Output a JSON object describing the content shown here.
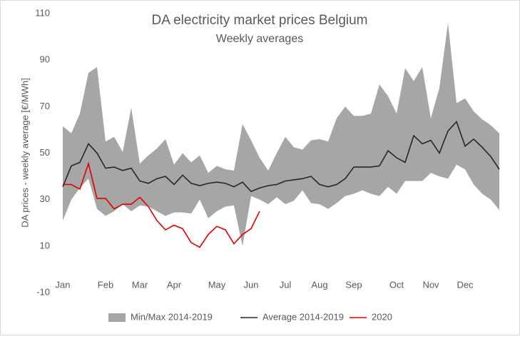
{
  "chart_data": {
    "type": "line",
    "title": "DA electricity market prices Belgium",
    "subtitle": "Weekly averages",
    "y_label": "DA prices - weekly average [€/MWh]",
    "categories": [
      "Jan",
      null,
      null,
      null,
      null,
      "Feb",
      null,
      null,
      null,
      "Mar",
      null,
      null,
      null,
      "Apr",
      null,
      null,
      null,
      null,
      "May",
      null,
      null,
      null,
      "Jun",
      null,
      null,
      null,
      "Jul",
      null,
      null,
      null,
      "Aug",
      null,
      null,
      null,
      "Sep",
      null,
      null,
      null,
      null,
      "Oct",
      null,
      null,
      null,
      "Nov",
      null,
      null,
      null,
      "Dec",
      null,
      null,
      null,
      null
    ],
    "ylim": [
      -10,
      110
    ],
    "yticks": [
      -10,
      10,
      30,
      50,
      70,
      90,
      110
    ],
    "grid": false,
    "legend": "bottom",
    "series": [
      {
        "name": "Min/Max 2014-2019",
        "kind": "band",
        "color": "#a6a6a6",
        "values": [
          61.5,
          58.5,
          67,
          84.5,
          87,
          55,
          57,
          50.5,
          69.5,
          45.5,
          49,
          52,
          56,
          45,
          50,
          46,
          49,
          41.5,
          44.5,
          43,
          42.5,
          62.5,
          55.5,
          48,
          42.5,
          50,
          57,
          52.5,
          51.5,
          55.5,
          56,
          55,
          65,
          70,
          66,
          66,
          67,
          79.5,
          74.5,
          67,
          86.5,
          81,
          87,
          65,
          78,
          106,
          71.5,
          73.5,
          68,
          64.5,
          62,
          58.5
        ],
        "low": [
          21,
          30,
          35,
          39,
          26,
          23,
          25,
          28,
          25,
          27.5,
          27,
          25,
          23,
          24.5,
          24.5,
          24,
          30,
          22,
          25,
          27,
          27.5,
          10,
          31.5,
          30,
          28,
          31,
          28,
          29.5,
          34,
          28.5,
          28,
          26,
          28.5,
          31.5,
          32.5,
          34,
          32.5,
          31.5,
          35.5,
          32.5,
          38,
          38,
          38,
          41.5,
          40,
          39,
          45,
          43,
          36.5,
          32.5,
          30,
          25.5
        ]
      },
      {
        "name": "Average 2014-2019",
        "color": "#262626",
        "values": [
          35.5,
          44.5,
          46,
          54,
          50,
          43.5,
          44,
          42.5,
          43.5,
          38,
          37,
          39,
          40,
          36.5,
          40.5,
          37,
          36,
          37,
          37.5,
          37,
          35.5,
          37.5,
          33.5,
          35,
          36,
          36.5,
          38,
          38.5,
          39,
          40,
          36.5,
          35.5,
          36.5,
          39,
          44,
          44,
          44,
          44.5,
          51,
          48,
          46,
          57.5,
          54,
          55.5,
          50,
          59.5,
          63.5,
          53,
          56,
          52.5,
          48.5,
          43
        ]
      },
      {
        "name": "2020",
        "color": "#e00000",
        "values": [
          36.5,
          36.5,
          34.5,
          45.5,
          30.5,
          30.5,
          26,
          28,
          28,
          31,
          27,
          21,
          17,
          19,
          17.5,
          11.5,
          9.5,
          15,
          18.5,
          17,
          11,
          15,
          17.5,
          25,
          null,
          null,
          null,
          null,
          null,
          null,
          null,
          null,
          null,
          null,
          null,
          null,
          null,
          null,
          null,
          null,
          null,
          null,
          null,
          null,
          null,
          null,
          null,
          null,
          null,
          null,
          null,
          null
        ]
      }
    ]
  }
}
